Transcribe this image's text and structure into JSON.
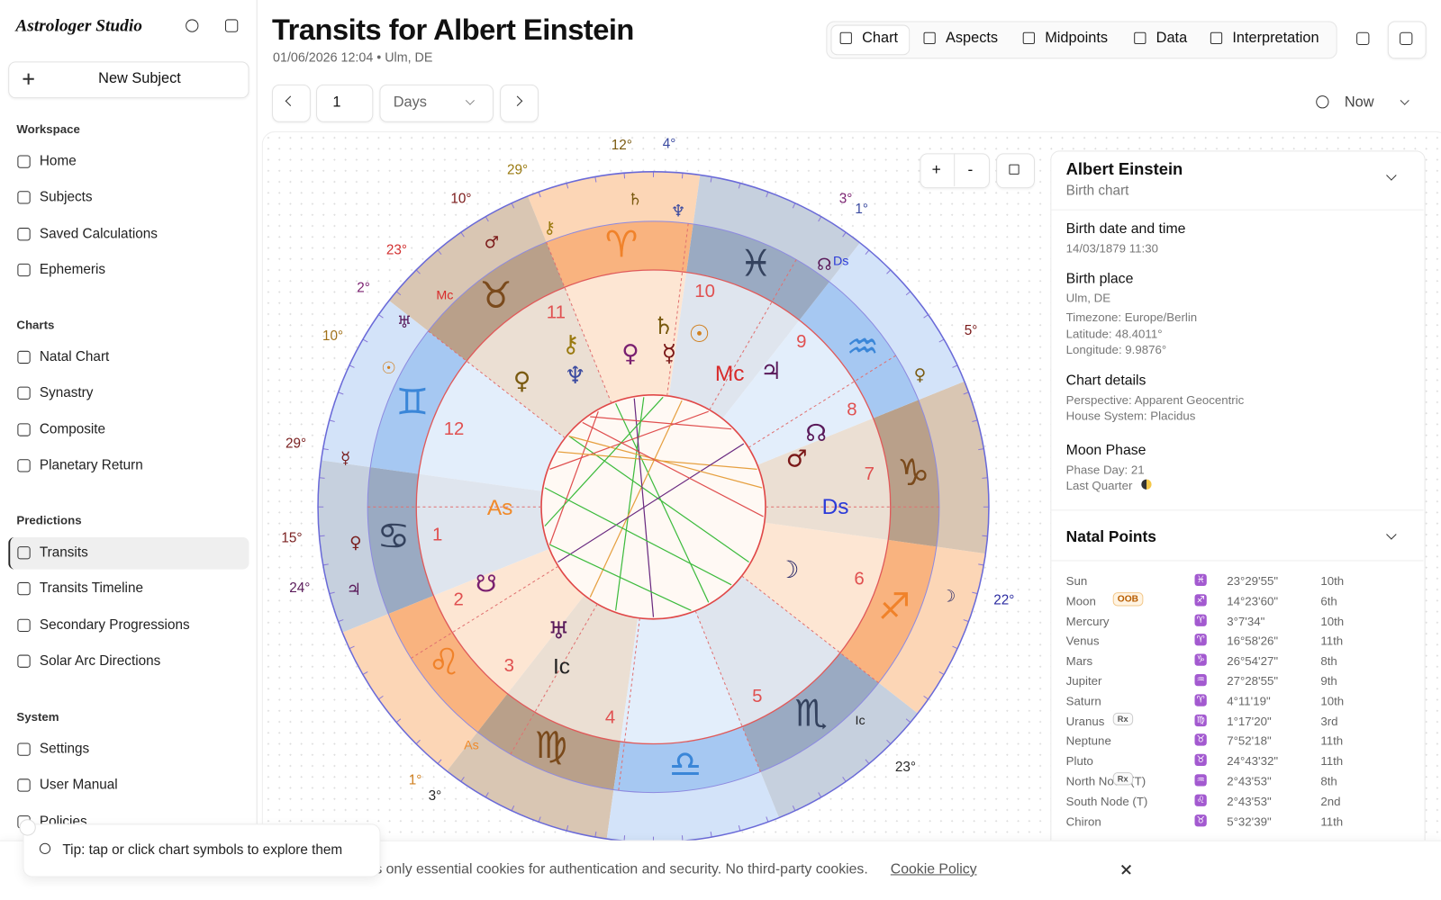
{
  "sidebar": {
    "logo": "Astrologer Studio",
    "new_subject": "New Subject",
    "sections": [
      {
        "title": "Workspace",
        "items": [
          "Home",
          "Subjects",
          "Saved Calculations",
          "Ephemeris"
        ]
      },
      {
        "title": "Charts",
        "items": [
          "Natal Chart",
          "Synastry",
          "Composite",
          "Planetary Return"
        ]
      },
      {
        "title": "Predictions",
        "items": [
          "Transits",
          "Transits Timeline",
          "Secondary Progressions",
          "Solar Arc Directions"
        ]
      },
      {
        "title": "System",
        "items": [
          "Settings",
          "User Manual",
          "Policies"
        ]
      }
    ]
  },
  "header": {
    "title": "Transits for Albert Einstein",
    "subtitle": "01/06/2026 12:04 • Ulm, DE",
    "tabs": [
      "Chart",
      "Aspects",
      "Midpoints",
      "Data",
      "Interpretation"
    ]
  },
  "toolbar": {
    "step": "1",
    "unit": "Days",
    "now": "Now"
  },
  "zoom": {
    "in": "+",
    "out": "-"
  },
  "panel": {
    "name": "Albert Einstein",
    "subtitle": "Birth chart",
    "sections": [
      {
        "title": "Birth date and time",
        "lines": [
          "14/03/1879 11:30"
        ]
      },
      {
        "title": "Birth place",
        "lines": [
          "Ulm, DE",
          "Timezone: Europe/Berlin",
          "Latitude: 48.4011°",
          "Longitude: 9.9876°"
        ]
      },
      {
        "title": "Chart details",
        "lines": [
          "Perspective: Apparent Geocentric",
          "House System: Placidus"
        ]
      },
      {
        "title": "Moon Phase",
        "lines": [
          "Phase Day: 21",
          "Last Quarter"
        ]
      }
    ],
    "points_title": "Natal Points",
    "points": [
      [
        "Sun",
        "",
        "♓",
        "23°29'55\"",
        "10th"
      ],
      [
        "Moon",
        "OOB",
        "♐",
        "14°23'60\"",
        "6th"
      ],
      [
        "Mercury",
        "",
        "♈",
        "3°7'34\"",
        "10th"
      ],
      [
        "Venus",
        "",
        "♈",
        "16°58'26\"",
        "11th"
      ],
      [
        "Mars",
        "",
        "♑",
        "26°54'27\"",
        "8th"
      ],
      [
        "Jupiter",
        "",
        "♒",
        "27°28'55\"",
        "9th"
      ],
      [
        "Saturn",
        "",
        "♈",
        "4°11'19\"",
        "10th"
      ],
      [
        "Uranus",
        "Rx",
        "♍",
        "1°17'20\"",
        "3rd"
      ],
      [
        "Neptune",
        "",
        "♉",
        "7°52'18\"",
        "11th"
      ],
      [
        "Pluto",
        "",
        "♉",
        "24°43'32\"",
        "11th"
      ],
      [
        "North Node (T)",
        "Rx",
        "♒",
        "2°43'53\"",
        "8th"
      ],
      [
        "South Node (T)",
        "",
        "♌",
        "2°43'53\"",
        "2nd"
      ],
      [
        "Chiron",
        "",
        "♉",
        "5°32'39\"",
        "11th"
      ]
    ]
  },
  "wheel": {
    "signs": [
      "♈",
      "♉",
      "♊",
      "♋",
      "♌",
      "♍",
      "♎",
      "♏",
      "♐",
      "♑",
      "♒",
      "♓"
    ],
    "outer_degrees": [
      "12°",
      "4°",
      "29°",
      "10°",
      "23°",
      "2°",
      "10°",
      "29°",
      "15°",
      "24°",
      "1°",
      "3°",
      "23°",
      "22°",
      "5°",
      "3°",
      "1°"
    ],
    "house_numbers": [
      "1",
      "2",
      "3",
      "4",
      "5",
      "6",
      "7",
      "8",
      "9",
      "10",
      "11",
      "12"
    ],
    "angles": [
      "As",
      "Ds",
      "Mc",
      "Ic",
      "Mc",
      "Ds",
      "Ic",
      "As"
    ],
    "planets": [
      "♄",
      "♆",
      "⚷",
      "♂",
      "♅",
      "☉",
      "☿",
      "♀",
      "♃",
      "☊",
      "♀",
      "♄",
      "☉",
      "⚷",
      "♀",
      "☿",
      "♆",
      "♀",
      "♃",
      "☊",
      "♂",
      "☽",
      "☋",
      "♅",
      "☽"
    ]
  },
  "tip": "Tip: tap or click chart symbols to explore them",
  "cookie": {
    "text": "s only essential cookies for authentication and security. No third-party cookies.",
    "link": "Cookie Policy"
  }
}
